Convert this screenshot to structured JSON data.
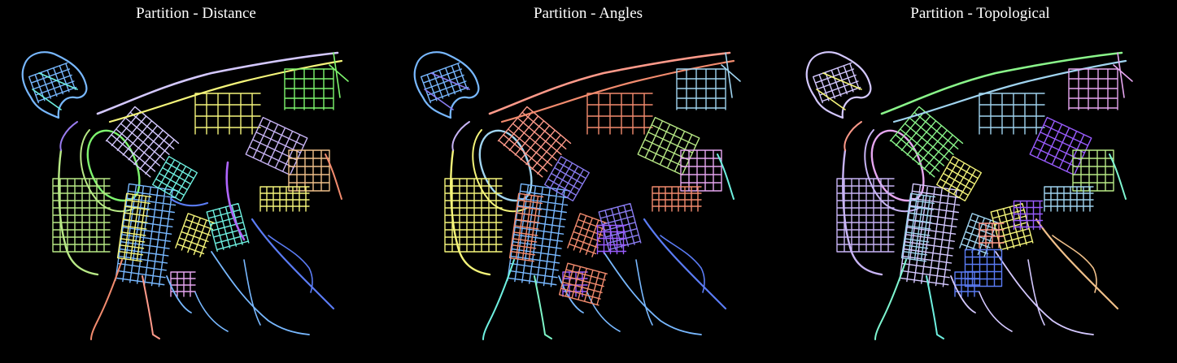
{
  "panels": [
    {
      "title": "Partition - Distance",
      "background": "#000000",
      "district_colors": [
        "#f28b6e",
        "#9a7cf0",
        "#b8e986",
        "#6ef0e0",
        "#f5f57a",
        "#c8b4f5",
        "#5b7cf5",
        "#e6a6f0",
        "#f0c08a",
        "#a0d4f0",
        "#7ef56e",
        "#ff9a8a",
        "#b066ff",
        "#78b8ff",
        "#d4c8ff"
      ]
    },
    {
      "title": "Partition - Angles",
      "background": "#000000",
      "district_colors": [
        "#6ef0e0",
        "#c8b4f5",
        "#f5f57a",
        "#8a7cf0",
        "#f28b6e",
        "#b8e986",
        "#5b7cf5",
        "#9a5cff",
        "#e6a6f0",
        "#f0c08a",
        "#a0d4f0",
        "#7ef5c8",
        "#e0f090",
        "#78b8ff",
        "#ff9a8a"
      ]
    },
    {
      "title": "Partition - Topological",
      "background": "#000000",
      "district_colors": [
        "#7ef5d0",
        "#ff9a8a",
        "#c8b4f5",
        "#f5f57a",
        "#a0d4f0",
        "#9a5cff",
        "#f0c08a",
        "#5b7cf5",
        "#b8e986",
        "#f28b6e",
        "#e6a6f0",
        "#6ef0e0",
        "#78b8ff",
        "#d4c8ff",
        "#8af58a"
      ]
    }
  ]
}
